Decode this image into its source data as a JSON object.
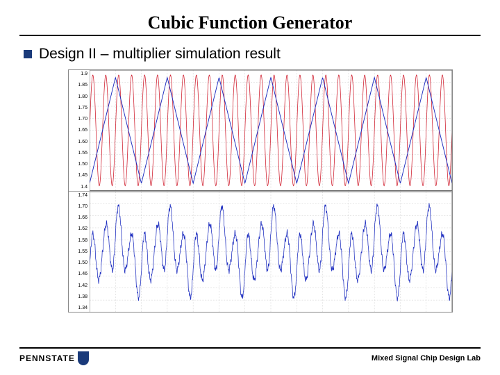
{
  "title": "Cubic Function Generator",
  "bullet": "Design II – multiplier simulation result",
  "footer": {
    "institution": "PENNSTATE",
    "lab": "Mixed Signal Chip Design Lab"
  },
  "colors": {
    "accent": "#1a3a7a",
    "series_red": "#d02030",
    "series_blue": "#2030c0",
    "grid": "#cccccc",
    "grid_minor": "#e4e4e4",
    "border": "#888888",
    "bg": "#ffffff"
  },
  "chart": {
    "x_range": [
      0,
      7.0
    ],
    "grid_x_step": 0.5,
    "subplots": [
      {
        "ylim": [
          1.4,
          1.9
        ],
        "yticks": [
          "1.9",
          "1.85",
          "1.80",
          "1.75",
          "1.70",
          "1.65",
          "1.60",
          "1.55",
          "1.50",
          "1.45",
          "1.4"
        ],
        "series": [
          {
            "color": "#d02030",
            "type": "sinusoid",
            "amplitude": 0.23,
            "offset": 1.65,
            "cycles": 28,
            "phase": 0,
            "linewidth": 0.8
          },
          {
            "color": "#2030c0",
            "type": "triangle",
            "amplitude": 0.22,
            "offset": 1.65,
            "cycles": 7,
            "phase": 0,
            "linewidth": 1.0
          }
        ]
      },
      {
        "ylim": [
          1.34,
          1.74
        ],
        "yticks": [
          "1.74",
          "1.70",
          "1.66",
          "1.62",
          "1.58",
          "1.55",
          "1.50",
          "1.46",
          "1.42",
          "1.38",
          "1.34"
        ],
        "series": [
          {
            "color": "#2030c0",
            "type": "product",
            "amp_fast": 0.12,
            "cycles_fast": 28,
            "amp_slow": 0.06,
            "cycles_slow": 7,
            "offset": 1.54,
            "noise": 0.015,
            "linewidth": 0.8
          }
        ]
      }
    ]
  }
}
